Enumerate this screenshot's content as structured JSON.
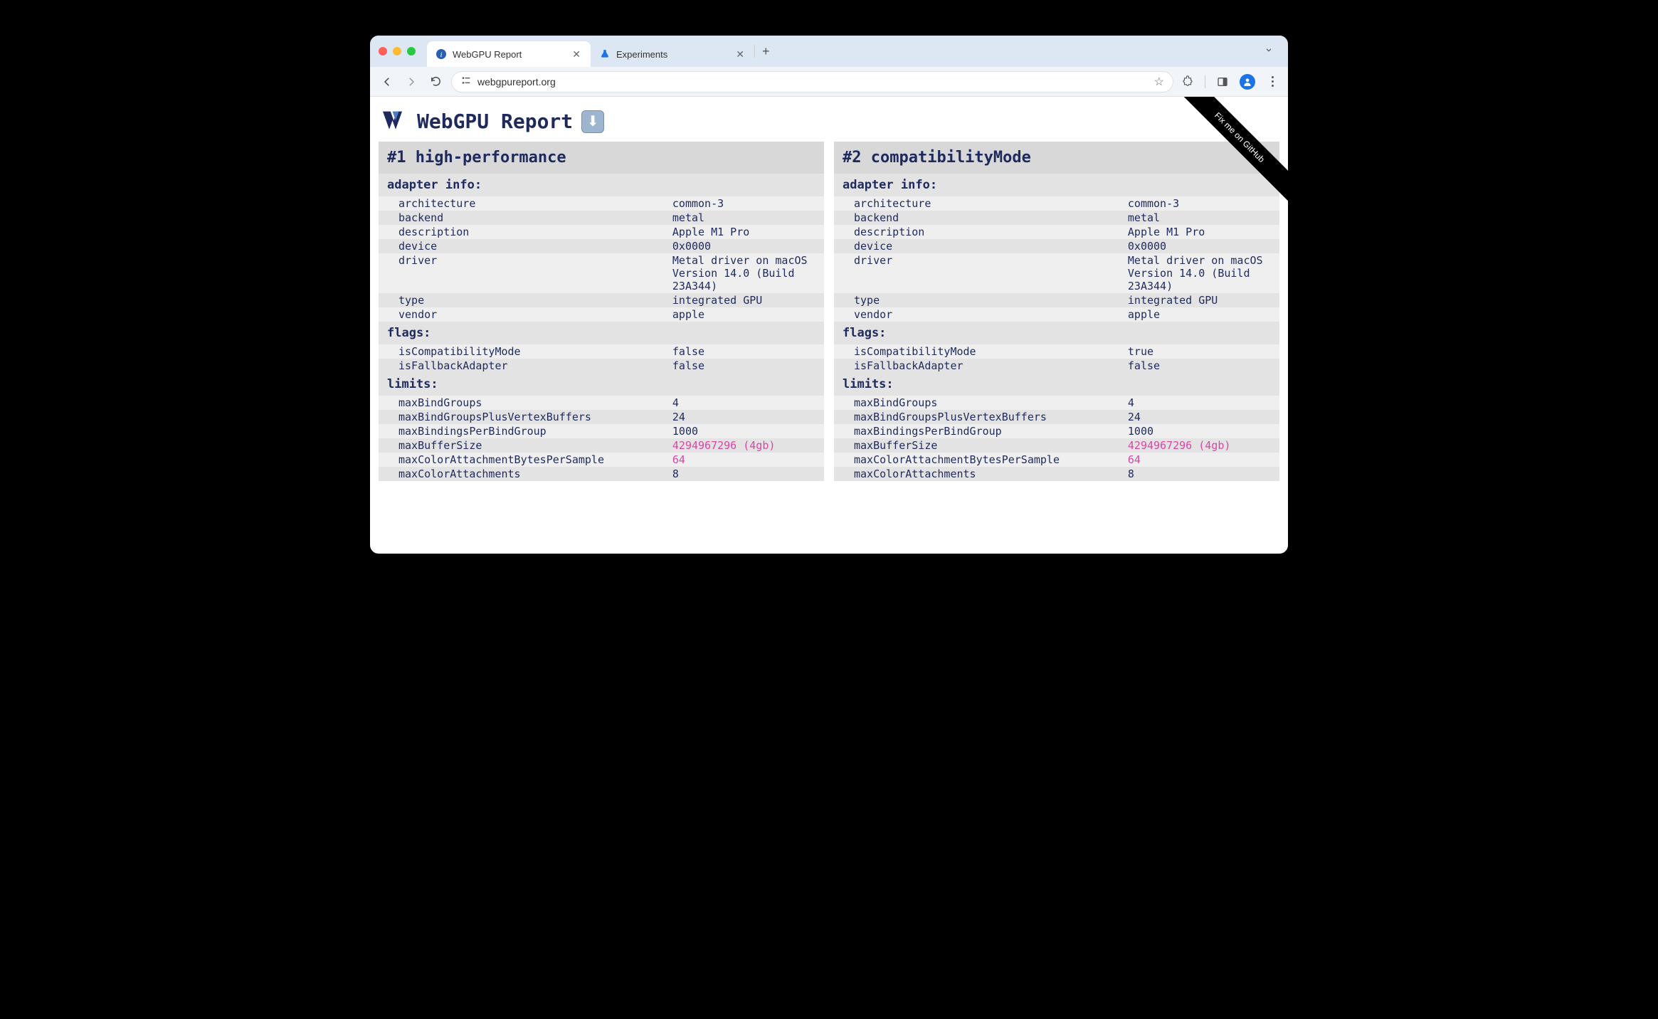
{
  "browser": {
    "tabs": [
      {
        "title": "WebGPU Report",
        "active": true
      },
      {
        "title": "Experiments",
        "active": false
      }
    ],
    "url": "webgpureport.org"
  },
  "page": {
    "title": "WebGPU Report",
    "github_ribbon": "Fix me on GitHub"
  },
  "panels": [
    {
      "header": "#1 high-performance",
      "sections": [
        {
          "title": "adapter info:",
          "rows": [
            {
              "k": "architecture",
              "v": "common-3"
            },
            {
              "k": "backend",
              "v": "metal"
            },
            {
              "k": "description",
              "v": "Apple M1 Pro"
            },
            {
              "k": "device",
              "v": "0x0000"
            },
            {
              "k": "driver",
              "v": "Metal driver on macOS Version 14.0 (Build 23A344)"
            },
            {
              "k": "type",
              "v": "integrated GPU"
            },
            {
              "k": "vendor",
              "v": "apple"
            }
          ]
        },
        {
          "title": "flags:",
          "rows": [
            {
              "k": "isCompatibilityMode",
              "v": "false"
            },
            {
              "k": "isFallbackAdapter",
              "v": "false"
            }
          ]
        },
        {
          "title": "limits:",
          "rows": [
            {
              "k": "maxBindGroups",
              "v": "4"
            },
            {
              "k": "maxBindGroupsPlusVertexBuffers",
              "v": "24"
            },
            {
              "k": "maxBindingsPerBindGroup",
              "v": "1000"
            },
            {
              "k": "maxBufferSize",
              "v": "4294967296 (4gb)",
              "pink": true
            },
            {
              "k": "maxColorAttachmentBytesPerSample",
              "v": "64",
              "pink": true
            },
            {
              "k": "maxColorAttachments",
              "v": "8"
            }
          ]
        }
      ]
    },
    {
      "header": "#2 compatibilityMode",
      "sections": [
        {
          "title": "adapter info:",
          "rows": [
            {
              "k": "architecture",
              "v": "common-3"
            },
            {
              "k": "backend",
              "v": "metal"
            },
            {
              "k": "description",
              "v": "Apple M1 Pro"
            },
            {
              "k": "device",
              "v": "0x0000"
            },
            {
              "k": "driver",
              "v": "Metal driver on macOS Version 14.0 (Build 23A344)"
            },
            {
              "k": "type",
              "v": "integrated GPU"
            },
            {
              "k": "vendor",
              "v": "apple"
            }
          ]
        },
        {
          "title": "flags:",
          "rows": [
            {
              "k": "isCompatibilityMode",
              "v": "true"
            },
            {
              "k": "isFallbackAdapter",
              "v": "false"
            }
          ]
        },
        {
          "title": "limits:",
          "rows": [
            {
              "k": "maxBindGroups",
              "v": "4"
            },
            {
              "k": "maxBindGroupsPlusVertexBuffers",
              "v": "24"
            },
            {
              "k": "maxBindingsPerBindGroup",
              "v": "1000"
            },
            {
              "k": "maxBufferSize",
              "v": "4294967296 (4gb)",
              "pink": true
            },
            {
              "k": "maxColorAttachmentBytesPerSample",
              "v": "64",
              "pink": true
            },
            {
              "k": "maxColorAttachments",
              "v": "8"
            }
          ]
        }
      ]
    }
  ],
  "colors": {
    "heading": "#1e2a5e",
    "pink": "#d946a5",
    "tab_strip": "#dde7f4",
    "toolbar": "#f1f4f9",
    "panel_header_bg": "#d8d8d8",
    "section_header_bg": "#e3e3e3",
    "row_odd": "#efefef",
    "row_even": "#e3e3e3"
  }
}
